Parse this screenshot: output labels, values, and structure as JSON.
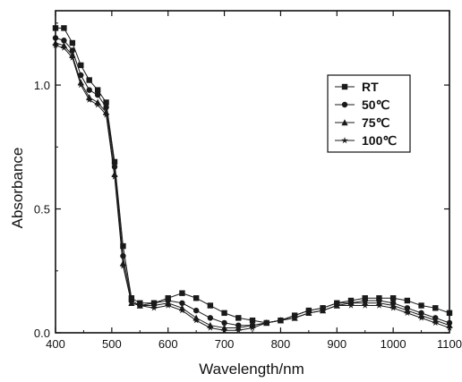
{
  "chart_data": {
    "type": "line",
    "xlabel": "Wavelength/nm",
    "ylabel": "Absorbance",
    "xlim": [
      400,
      1100
    ],
    "ylim": [
      0.0,
      1.3
    ],
    "xticks": [
      400,
      500,
      600,
      700,
      800,
      900,
      1000,
      1100
    ],
    "yticks": [
      0.0,
      0.5,
      1.0
    ],
    "ytick_labels": [
      "0.0",
      "0.5",
      "1.0"
    ],
    "grid": false,
    "legend_position": "top-right",
    "series": [
      {
        "name": "RT",
        "marker": "square",
        "x": [
          400,
          415,
          430,
          445,
          460,
          475,
          490,
          505,
          520,
          535,
          550,
          575,
          600,
          625,
          650,
          675,
          700,
          725,
          750,
          775,
          800,
          825,
          850,
          875,
          900,
          925,
          950,
          975,
          1000,
          1025,
          1050,
          1075,
          1100
        ],
        "y": [
          1.23,
          1.23,
          1.17,
          1.08,
          1.02,
          0.98,
          0.93,
          0.69,
          0.35,
          0.14,
          0.12,
          0.12,
          0.14,
          0.16,
          0.14,
          0.11,
          0.08,
          0.06,
          0.05,
          0.04,
          0.05,
          0.07,
          0.09,
          0.1,
          0.12,
          0.13,
          0.14,
          0.14,
          0.14,
          0.13,
          0.11,
          0.1,
          0.08
        ]
      },
      {
        "name": "50℃",
        "marker": "circle",
        "x": [
          400,
          415,
          430,
          445,
          460,
          475,
          490,
          505,
          520,
          535,
          550,
          575,
          600,
          625,
          650,
          675,
          700,
          725,
          750,
          775,
          800,
          825,
          850,
          875,
          900,
          925,
          950,
          975,
          1000,
          1025,
          1050,
          1075,
          1100
        ],
        "y": [
          1.19,
          1.18,
          1.14,
          1.04,
          0.98,
          0.96,
          0.91,
          0.67,
          0.31,
          0.13,
          0.11,
          0.12,
          0.13,
          0.12,
          0.09,
          0.06,
          0.04,
          0.03,
          0.03,
          0.04,
          0.05,
          0.07,
          0.09,
          0.1,
          0.12,
          0.12,
          0.13,
          0.13,
          0.12,
          0.1,
          0.08,
          0.06,
          0.04
        ]
      },
      {
        "name": "75℃",
        "marker": "triangle",
        "x": [
          400,
          415,
          430,
          445,
          460,
          475,
          490,
          505,
          520,
          535,
          550,
          575,
          600,
          625,
          650,
          675,
          700,
          725,
          750,
          775,
          800,
          825,
          850,
          875,
          900,
          925,
          950,
          975,
          1000,
          1025,
          1050,
          1075,
          1100
        ],
        "y": [
          1.17,
          1.16,
          1.12,
          1.01,
          0.95,
          0.93,
          0.89,
          0.64,
          0.28,
          0.12,
          0.11,
          0.11,
          0.12,
          0.1,
          0.06,
          0.03,
          0.02,
          0.02,
          0.03,
          0.04,
          0.05,
          0.06,
          0.08,
          0.09,
          0.11,
          0.12,
          0.12,
          0.12,
          0.11,
          0.09,
          0.07,
          0.05,
          0.03
        ]
      },
      {
        "name": "100℃",
        "marker": "star",
        "x": [
          400,
          415,
          430,
          445,
          460,
          475,
          490,
          505,
          520,
          535,
          550,
          575,
          600,
          625,
          650,
          675,
          700,
          725,
          750,
          775,
          800,
          825,
          850,
          875,
          900,
          925,
          950,
          975,
          1000,
          1025,
          1050,
          1075,
          1100
        ],
        "y": [
          1.16,
          1.15,
          1.11,
          1.0,
          0.94,
          0.92,
          0.88,
          0.63,
          0.27,
          0.12,
          0.11,
          0.1,
          0.11,
          0.09,
          0.05,
          0.02,
          0.01,
          0.01,
          0.02,
          0.04,
          0.05,
          0.06,
          0.08,
          0.09,
          0.11,
          0.11,
          0.11,
          0.11,
          0.1,
          0.08,
          0.06,
          0.04,
          0.02
        ]
      }
    ]
  }
}
